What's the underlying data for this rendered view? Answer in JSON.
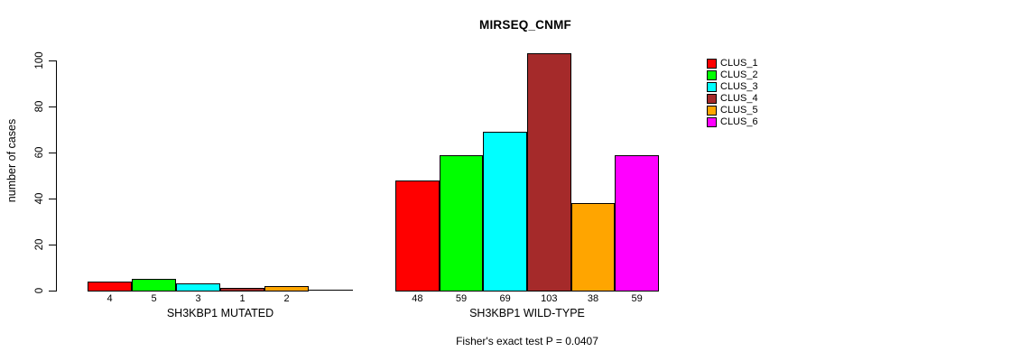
{
  "chart_data": {
    "type": "bar",
    "title": "MIRSEQ_CNMF",
    "ylabel": "number of cases",
    "xlabel": "",
    "ylim": [
      0,
      100
    ],
    "y_ticks": [
      0,
      20,
      40,
      60,
      80,
      100
    ],
    "grid": false,
    "legend_position": "right",
    "legend": [
      {
        "name": "CLUS_1",
        "color": "#FF0000"
      },
      {
        "name": "CLUS_2",
        "color": "#00FF00"
      },
      {
        "name": "CLUS_3",
        "color": "#00FFFF"
      },
      {
        "name": "CLUS_4",
        "color": "#A52A2A"
      },
      {
        "name": "CLUS_5",
        "color": "#FFA500"
      },
      {
        "name": "CLUS_6",
        "color": "#FF00FF"
      }
    ],
    "groups": [
      {
        "label": "SH3KBP1 MUTATED",
        "values": [
          4,
          5,
          3,
          1,
          2,
          0
        ]
      },
      {
        "label": "SH3KBP1 WILD-TYPE",
        "values": [
          48,
          59,
          69,
          103,
          38,
          59
        ]
      }
    ],
    "footnote": "Fisher's exact test P = 0.0407"
  }
}
